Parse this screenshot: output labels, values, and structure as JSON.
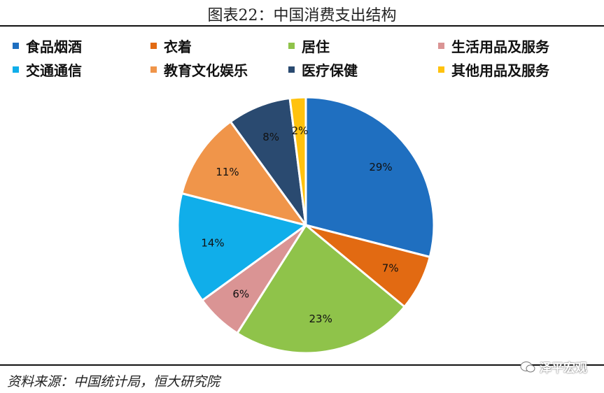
{
  "title": "图表22：中国消费支出结构",
  "source": "资料来源：中国统计局，恒大研究院",
  "watermark": "泽平宏观",
  "chart_data": {
    "type": "pie",
    "categories": [
      "食品烟酒",
      "衣着",
      "居住",
      "生活用品及服务",
      "交通通信",
      "教育文化娱乐",
      "医疗保健",
      "其他用品及服务"
    ],
    "values": [
      29,
      7,
      23,
      6,
      14,
      11,
      8,
      2
    ],
    "value_labels": [
      "29%",
      "7%",
      "23%",
      "6%",
      "14%",
      "11%",
      "8%",
      "2%"
    ],
    "colors": [
      "#1F6FC0",
      "#E26A12",
      "#8FC34A",
      "#DA9494",
      "#10AEEA",
      "#F0954A",
      "#2A4A70",
      "#FFC20E"
    ],
    "legend_position": "top"
  }
}
